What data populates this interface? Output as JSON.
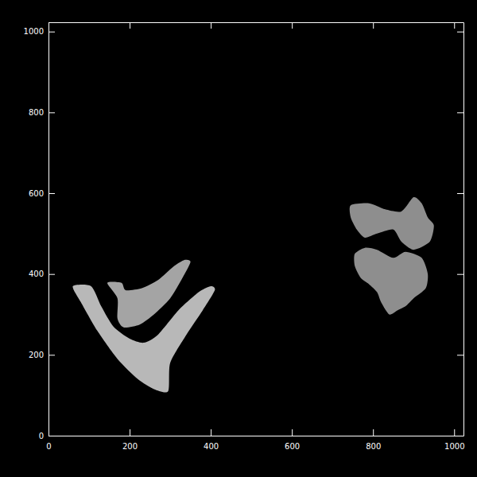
{
  "chart_data": {
    "type": "image",
    "xlim": [
      0,
      1023
    ],
    "ylim": [
      0,
      1023
    ],
    "xticks": [
      0,
      200,
      400,
      600,
      800,
      1000
    ],
    "yticks": [
      0,
      200,
      400,
      600,
      800,
      1000
    ],
    "regions": [
      {
        "color": "#b8b8b8",
        "x": [
          60,
          80,
          120,
          170,
          220,
          260,
          295,
          300,
          340,
          380,
          410,
          400,
          370,
          320,
          270,
          235,
          200,
          160,
          130,
          105
        ],
        "y": [
          370,
          330,
          260,
          190,
          140,
          115,
          110,
          180,
          250,
          310,
          360,
          370,
          355,
          310,
          250,
          230,
          240,
          270,
          320,
          370
        ]
      },
      {
        "color": "#a4a4a4",
        "x": [
          145,
          180,
          190,
          230,
          270,
          310,
          335,
          350,
          330,
          300,
          260,
          225,
          185,
          170,
          170
        ],
        "y": [
          378,
          378,
          360,
          365,
          385,
          420,
          435,
          430,
          390,
          340,
          300,
          275,
          268,
          290,
          340
        ]
      },
      {
        "color": "#8e8e8e",
        "x": [
          745,
          790,
          830,
          870,
          900,
          920,
          935,
          950,
          940,
          900,
          870,
          850,
          810,
          780,
          760,
          745
        ],
        "y": [
          570,
          575,
          560,
          555,
          590,
          575,
          540,
          520,
          480,
          460,
          480,
          510,
          500,
          490,
          510,
          540
        ]
      },
      {
        "color": "#8e8e8e",
        "x": [
          755,
          780,
          810,
          850,
          880,
          920,
          935,
          930,
          900,
          880,
          860,
          840,
          820,
          810,
          790,
          770,
          755
        ],
        "y": [
          450,
          465,
          460,
          440,
          455,
          440,
          400,
          365,
          340,
          320,
          310,
          300,
          330,
          355,
          375,
          390,
          420
        ]
      }
    ]
  }
}
